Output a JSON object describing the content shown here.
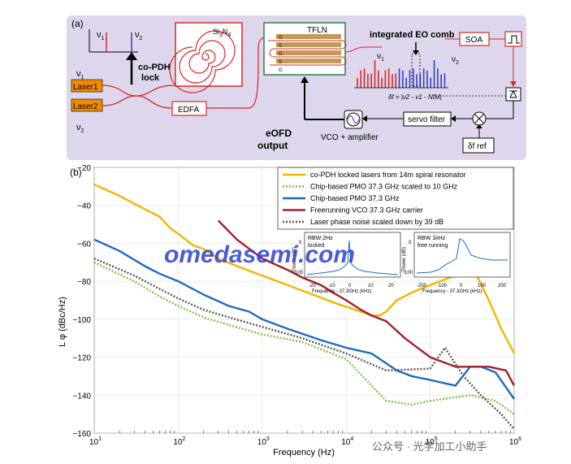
{
  "panel_a": {
    "label": "(a)",
    "nu1": "ν",
    "nu1_sub": "1",
    "nu2": "ν",
    "nu2_sub": "2",
    "copdh_line1": "co-PDH",
    "copdh_line2": "lock",
    "sin_label": "Si3N4",
    "laser1": "Laser1",
    "laser2": "Laser2",
    "edfa": "EDFA",
    "tfln": "TFLN",
    "comb_title": "integrated EO comb",
    "soa": "SOA",
    "delta_f": "δf = |ν2 - ν1 - NfM|",
    "servo": "servo filter",
    "vco": "VCO + amplifier",
    "eofd_line1": "eOFD",
    "eofd_line2": "output",
    "df_ref": "δf ref",
    "g_letter": "G",
    "s_letter": "S"
  },
  "panel_b": {
    "label": "(b)",
    "watermark": "omedasemi.com",
    "footer_watermark": "公众号 · 光学加工小助手",
    "inset_locked": {
      "line1": "RBW 2Hz",
      "line2": "locked",
      "xlabel": "Frequency - 37.3GHz (kHz)",
      "ylabel": "Power (dB)",
      "xticks": [
        "-20",
        "-10",
        "0",
        "10",
        "20"
      ],
      "yticks": [
        "0",
        "-100"
      ]
    },
    "inset_free": {
      "line1": "RBW 1kHz",
      "line2": "free running",
      "xlabel": "Frequency - 37.3GHz (kHz)",
      "ylabel": "Power (dB)",
      "xticks": [
        "-200",
        "-100",
        "0",
        "100",
        "200"
      ],
      "yticks": [
        "0",
        "-100"
      ]
    }
  },
  "chart_data": {
    "type": "line",
    "xlabel": "Frequency (Hz)",
    "ylabel": "L φ (dBc/Hz)",
    "xscale": "log",
    "xlim": [
      10,
      1000000
    ],
    "ylim": [
      -160,
      -20
    ],
    "xticks": [
      "10^1",
      "10^2",
      "10^3",
      "10^4",
      "10^5",
      "10^6"
    ],
    "yticks": [
      -20,
      -40,
      -60,
      -80,
      -100,
      -120,
      -140,
      -160
    ],
    "legend_position": "top-right",
    "series": [
      {
        "name": "co-PDH locked lasers from 14m spiral resonator",
        "color": "#f2b400",
        "style": "solid",
        "x": [
          10,
          20,
          40,
          60,
          80,
          100,
          150,
          200,
          300,
          500,
          1000,
          2000,
          4000,
          8000,
          15000,
          20000,
          25000,
          30000,
          40000,
          60000,
          100000,
          200000,
          350000,
          500000,
          700000,
          1000000
        ],
        "y": [
          -29,
          -35,
          -42,
          -46,
          -52,
          -55,
          -61,
          -63,
          -68,
          -72,
          -77,
          -82,
          -87,
          -92,
          -96,
          -98,
          -98,
          -96,
          -90,
          -86,
          -82,
          -77,
          -76,
          -90,
          -105,
          -118
        ]
      },
      {
        "name": "Chip-based PMO 37.3 GHz scaled to 10 GHz",
        "color": "#7dc242",
        "style": "dotted",
        "x": [
          10,
          30,
          60,
          100,
          200,
          400,
          1000,
          3000,
          10000,
          30000,
          60000,
          100000,
          300000,
          600000,
          1000000
        ],
        "y": [
          -70,
          -80,
          -88,
          -93,
          -99,
          -103,
          -108,
          -112,
          -121,
          -143,
          -145,
          -143,
          -140,
          -143,
          -150
        ]
      },
      {
        "name": "Chip-based PMO 37.3 GHz",
        "color": "#1f6bbf",
        "style": "solid",
        "x": [
          10,
          20,
          40,
          60,
          100,
          200,
          400,
          700,
          1000,
          2000,
          5000,
          10000,
          20000,
          40000,
          60000,
          100000,
          200000,
          300000,
          400000,
          600000,
          1000000
        ],
        "y": [
          -58,
          -64,
          -72,
          -76,
          -80,
          -87,
          -93,
          -96,
          -100,
          -105,
          -111,
          -115,
          -118,
          -127,
          -130,
          -132,
          -135,
          -125,
          -125,
          -128,
          -142
        ]
      },
      {
        "name": "Freerunning VCO 37.3 GHz carrier",
        "color": "#a51e2a",
        "style": "solid",
        "x": [
          300,
          500,
          1000,
          2000,
          3000,
          5000,
          7000,
          10000,
          15000,
          20000,
          30000,
          50000,
          100000,
          200000,
          500000,
          800000,
          1000000
        ],
        "y": [
          -48,
          -58,
          -68,
          -74,
          -78,
          -82,
          -86,
          -90,
          -95,
          -98,
          -101,
          -110,
          -120,
          -125,
          -125,
          -127,
          -135
        ]
      },
      {
        "name": "Laser phase noise scaled down by 39 dB",
        "color": "#555555",
        "style": "dotted",
        "x": [
          10,
          30,
          60,
          100,
          200,
          400,
          1000,
          3000,
          10000,
          30000,
          100000,
          150000,
          250000,
          400000,
          700000,
          1000000
        ],
        "y": [
          -68,
          -77,
          -84,
          -89,
          -95,
          -99,
          -104,
          -110,
          -118,
          -127,
          -126,
          -115,
          -130,
          -140,
          -150,
          -158
        ]
      }
    ]
  }
}
